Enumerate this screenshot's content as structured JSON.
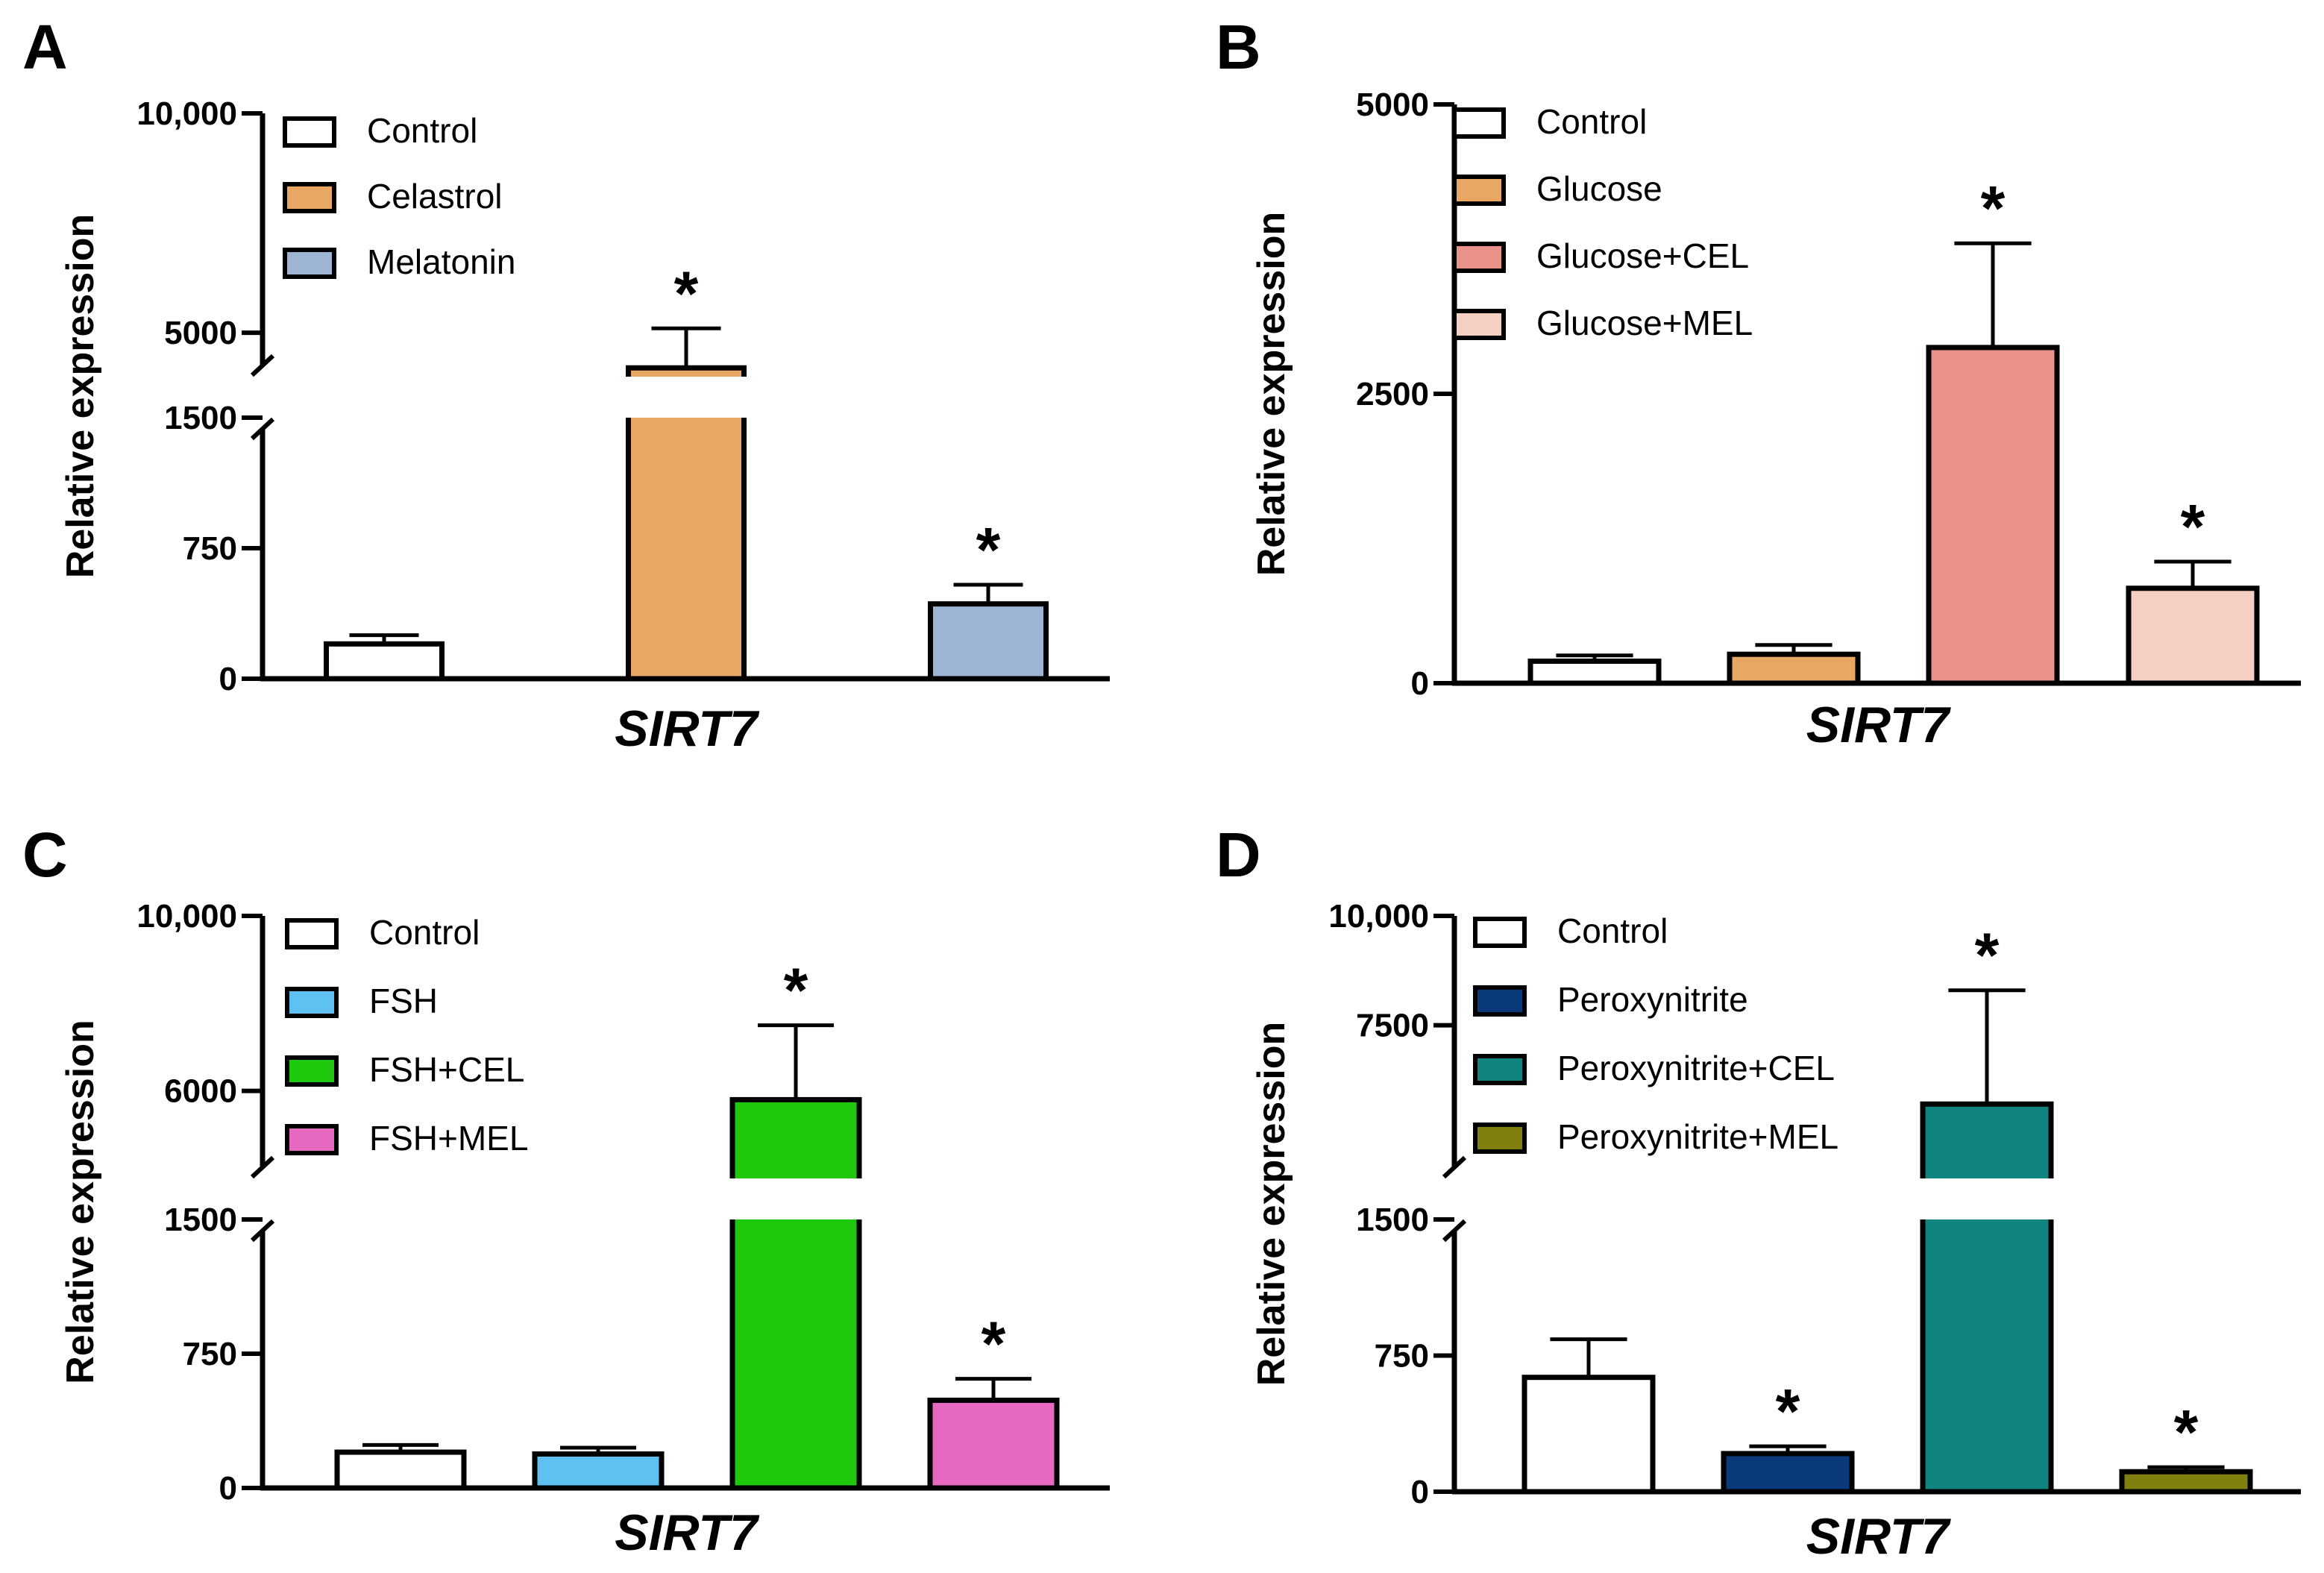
{
  "chart_data": [
    {
      "panel": "A",
      "type": "bar",
      "title": "",
      "xlabel": "SIRT7",
      "ylabel": "Relative expression",
      "axis_break": true,
      "ylim_lower": [
        0,
        1500
      ],
      "ylim_upper": [
        4000,
        10000
      ],
      "yticks_lower": [
        0,
        750,
        1500
      ],
      "yticks_upper": [
        5000,
        10000
      ],
      "ytick_labels": {
        "0": "0",
        "750": "750",
        "1500": "1500",
        "5000": "5000",
        "10000": "10,000"
      },
      "legend_position": "top-left",
      "categories": [
        "Control",
        "Celastrol",
        "Melatonin"
      ],
      "colors": [
        "#ffffff",
        "#e8a763",
        "#9db4d4"
      ],
      "values": [
        200,
        4200,
        430
      ],
      "errors": [
        50,
        900,
        110
      ],
      "significant": [
        false,
        true,
        true
      ],
      "significance_label": "*"
    },
    {
      "panel": "B",
      "type": "bar",
      "title": "",
      "xlabel": "SIRT7",
      "ylabel": "Relative expression",
      "axis_break": false,
      "ylim": [
        0,
        5000
      ],
      "yticks": [
        0,
        2500,
        5000
      ],
      "ytick_labels": {
        "0": "0",
        "2500": "2500",
        "5000": "5000"
      },
      "legend_position": "top-left",
      "categories": [
        "Control",
        "Glucose",
        "Glucose+CEL",
        "Glucose+MEL"
      ],
      "colors": [
        "#ffffff",
        "#e8a763",
        "#e8928a",
        "#f4cfc2"
      ],
      "values": [
        190,
        250,
        2900,
        820
      ],
      "errors": [
        50,
        80,
        900,
        230
      ],
      "significant": [
        false,
        false,
        true,
        true
      ],
      "significance_label": "*"
    },
    {
      "panel": "C",
      "type": "bar",
      "title": "",
      "xlabel": "SIRT7",
      "ylabel": "Relative expression",
      "axis_break": true,
      "ylim_lower": [
        0,
        1500
      ],
      "ylim_upper": [
        4000,
        10000
      ],
      "yticks_lower": [
        0,
        750,
        1500
      ],
      "yticks_upper": [
        6000,
        10000
      ],
      "ytick_labels": {
        "0": "0",
        "750": "750",
        "1500": "1500",
        "6000": "6000",
        "10000": "10,000"
      },
      "legend_position": "top-left",
      "categories": [
        "Control",
        "FSH",
        "FSH+CEL",
        "FSH+MEL"
      ],
      "colors": [
        "#ffffff",
        "#5ec1f2",
        "#1ec80c",
        "#e768c1"
      ],
      "values": [
        200,
        190,
        5800,
        490
      ],
      "errors": [
        40,
        35,
        1700,
        120
      ],
      "significant": [
        false,
        false,
        true,
        true
      ],
      "significance_label": "*"
    },
    {
      "panel": "D",
      "type": "bar",
      "title": "",
      "xlabel": "SIRT7",
      "ylabel": "Relative expression",
      "axis_break": true,
      "ylim_lower": [
        0,
        1500
      ],
      "ylim_upper": [
        4000,
        10000
      ],
      "yticks_lower": [
        0,
        750,
        1500
      ],
      "yticks_upper": [
        7500,
        10000
      ],
      "ytick_labels": {
        "0": "0",
        "750": "750",
        "1500": "1500",
        "7500": "7500",
        "10000": "10,000"
      },
      "legend_position": "top-left",
      "categories": [
        "Control",
        "Peroxynitrite",
        "Peroxynitrite+CEL",
        "Peroxynitrite+MEL"
      ],
      "colors": [
        "#ffffff",
        "#0a3a7a",
        "#118480",
        "#80800f"
      ],
      "values": [
        630,
        210,
        5700,
        110
      ],
      "errors": [
        210,
        40,
        2600,
        25
      ],
      "significant": [
        false,
        true,
        true,
        true
      ],
      "significance_label": "*"
    }
  ]
}
